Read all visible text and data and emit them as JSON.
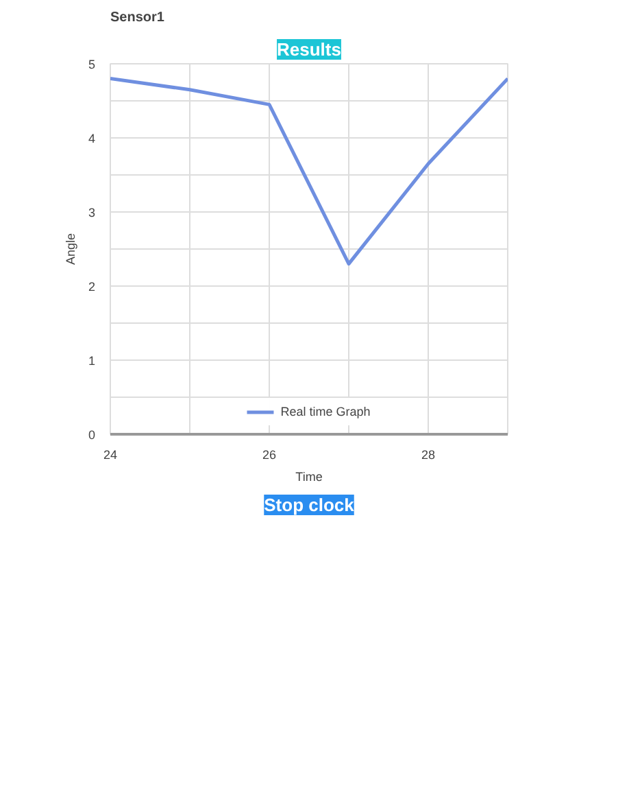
{
  "chart_data": {
    "type": "line",
    "title": "Sensor1",
    "xlabel": "Time",
    "ylabel": "Angle",
    "annotations": [
      "Results",
      "Stop clock"
    ],
    "x": [
      24,
      25,
      26,
      27,
      28,
      29
    ],
    "series": [
      {
        "name": "Real time Graph",
        "color": "#6f8fe0",
        "values": [
          4.8,
          4.65,
          4.45,
          2.3,
          3.65,
          4.8
        ]
      }
    ],
    "xlim": [
      24,
      29
    ],
    "ylim": [
      0,
      5
    ],
    "xticks": [
      24,
      {
        "value": 25,
        "label": null
      },
      26,
      {
        "value": 27,
        "label": null
      },
      28,
      {
        "value": 29,
        "label": null
      }
    ],
    "yticks": [
      0,
      {
        "value": 0.5,
        "label": null
      },
      1,
      {
        "value": 1.5,
        "label": null
      },
      2,
      {
        "value": 2.5,
        "label": null
      },
      3,
      {
        "value": 3.5,
        "label": null
      },
      4,
      {
        "value": 4.5,
        "label": null
      },
      5
    ],
    "grid": true,
    "legend": "bottom",
    "marker": "none",
    "line_style": "solid"
  }
}
